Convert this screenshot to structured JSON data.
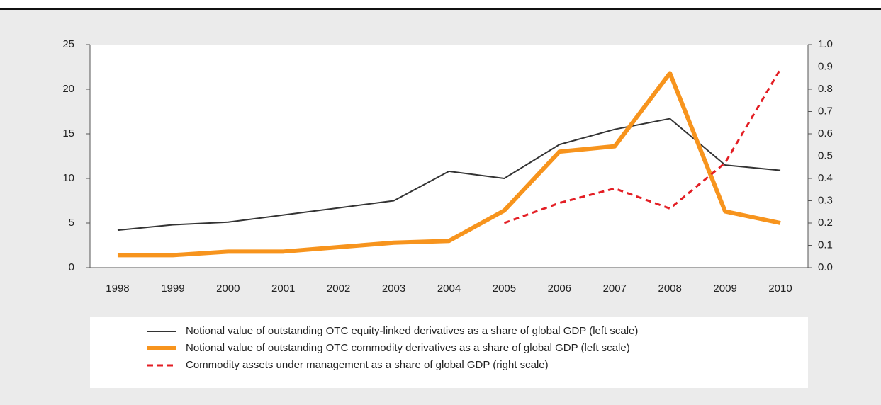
{
  "chart_data": {
    "type": "line",
    "categories": [
      "1998",
      "1999",
      "2000",
      "2001",
      "2002",
      "2003",
      "2004",
      "2005",
      "2006",
      "2007",
      "2008",
      "2009",
      "2010"
    ],
    "series": [
      {
        "name": "Notional value of outstanding OTC equity-linked derivatives as a share of global GDP (left scale)",
        "color": "#333333",
        "style": "solid",
        "width": 2,
        "values": [
          4.2,
          4.8,
          5.1,
          5.9,
          6.7,
          7.5,
          10.8,
          10.0,
          13.8,
          15.5,
          16.7,
          11.5,
          10.9
        ]
      },
      {
        "name": "Notional value of outstanding OTC commodity derivatives as a share of global GDP (left scale)",
        "color": "#f7941d",
        "style": "solid",
        "width": 6,
        "values": [
          1.4,
          1.4,
          1.8,
          1.8,
          2.3,
          2.8,
          3.0,
          6.4,
          13.0,
          13.6,
          21.8,
          6.3,
          5.0
        ]
      },
      {
        "name": "Commodity assets under management as a share of global GDP (right scale)",
        "color": "#e31e24",
        "style": "dashed",
        "width": 3,
        "axis": "y2",
        "values": [
          null,
          null,
          null,
          null,
          null,
          null,
          null,
          0.2,
          0.29,
          0.355,
          0.265,
          0.47,
          0.89
        ]
      }
    ],
    "ylim": [
      0,
      25
    ],
    "yticks": [
      0,
      5,
      10,
      15,
      20,
      25
    ],
    "y2lim": [
      0,
      1
    ],
    "y2ticks": [
      {
        "value": 0,
        "label": "0.0"
      },
      0.1,
      0.2,
      0.3,
      0.4,
      0.5,
      0.6,
      0.7,
      0.8,
      0.9,
      {
        "value": 1,
        "label": "1.0"
      }
    ],
    "legend": "bottom"
  }
}
